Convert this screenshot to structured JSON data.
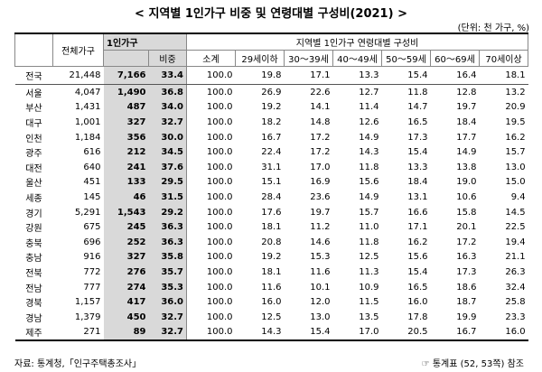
{
  "title": "< 지역별 1인가구 비중 및 연령대별 구성비(2021) >",
  "unit": "(단위: 천 가구, %)",
  "table": {
    "header": {
      "total": "전체가구",
      "single": "1인가구",
      "group": "지역별 1인가구 연령대별 구성비"
    },
    "sub_header": [
      "비중",
      "소계",
      "29세이하",
      "30～39세",
      "40～49세",
      "50～59세",
      "60～69세",
      "70세이상"
    ],
    "rows": [
      [
        "전국",
        "21,448",
        "7,166",
        "33.4",
        "100.0",
        "19.8",
        "17.1",
        "13.3",
        "15.4",
        "16.4",
        "18.1"
      ],
      [
        "서울",
        "4,047",
        "1,490",
        "36.8",
        "100.0",
        "26.9",
        "22.6",
        "12.7",
        "11.8",
        "12.8",
        "13.2"
      ],
      [
        "부산",
        "1,431",
        "487",
        "34.0",
        "100.0",
        "19.2",
        "14.1",
        "11.4",
        "14.7",
        "19.7",
        "20.9"
      ],
      [
        "대구",
        "1,001",
        "327",
        "32.7",
        "100.0",
        "18.2",
        "14.8",
        "12.6",
        "16.5",
        "18.4",
        "19.5"
      ],
      [
        "인천",
        "1,184",
        "356",
        "30.0",
        "100.0",
        "16.7",
        "17.2",
        "14.9",
        "17.3",
        "17.7",
        "16.2"
      ],
      [
        "광주",
        "616",
        "212",
        "34.5",
        "100.0",
        "22.4",
        "17.2",
        "14.3",
        "15.4",
        "14.9",
        "15.7"
      ],
      [
        "대전",
        "640",
        "241",
        "37.6",
        "100.0",
        "31.1",
        "17.0",
        "11.8",
        "13.3",
        "13.8",
        "13.0"
      ],
      [
        "울산",
        "451",
        "133",
        "29.5",
        "100.0",
        "15.1",
        "16.9",
        "15.6",
        "18.4",
        "19.0",
        "15.0"
      ],
      [
        "세종",
        "145",
        "46",
        "31.5",
        "100.0",
        "28.4",
        "23.6",
        "14.9",
        "13.1",
        "10.6",
        "9.4"
      ],
      [
        "경기",
        "5,291",
        "1,543",
        "29.2",
        "100.0",
        "17.6",
        "19.7",
        "15.7",
        "16.6",
        "15.8",
        "14.5"
      ],
      [
        "강원",
        "675",
        "245",
        "36.3",
        "100.0",
        "18.1",
        "11.2",
        "11.0",
        "17.1",
        "20.1",
        "22.5"
      ],
      [
        "충북",
        "696",
        "252",
        "36.3",
        "100.0",
        "20.8",
        "14.6",
        "11.8",
        "16.2",
        "17.2",
        "19.4"
      ],
      [
        "충남",
        "916",
        "327",
        "35.8",
        "100.0",
        "19.2",
        "15.3",
        "12.5",
        "15.6",
        "16.3",
        "21.1"
      ],
      [
        "전북",
        "772",
        "276",
        "35.7",
        "100.0",
        "18.1",
        "11.6",
        "11.3",
        "15.4",
        "17.3",
        "26.3"
      ],
      [
        "전남",
        "777",
        "274",
        "35.3",
        "100.0",
        "11.6",
        "10.1",
        "10.9",
        "16.5",
        "18.6",
        "32.4"
      ],
      [
        "경북",
        "1,157",
        "417",
        "36.0",
        "100.0",
        "16.0",
        "12.0",
        "11.5",
        "16.0",
        "18.7",
        "25.8"
      ],
      [
        "경남",
        "1,379",
        "450",
        "32.7",
        "100.0",
        "12.5",
        "13.0",
        "13.5",
        "17.8",
        "19.9",
        "23.3"
      ],
      [
        "제주",
        "271",
        "89",
        "32.7",
        "100.0",
        "14.3",
        "15.4",
        "17.0",
        "20.5",
        "16.7",
        "16.0"
      ]
    ]
  },
  "source": "자료: 통계청,「인구주택총조사」",
  "reference": "☞ 통계표 (52, 53쪽) 참조"
}
